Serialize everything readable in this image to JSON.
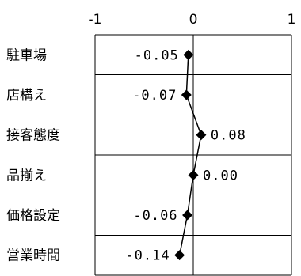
{
  "chart_data": {
    "type": "line",
    "orientation": "horizontal",
    "categories": [
      "駐車場",
      "店構え",
      "接客態度",
      "品揃え",
      "価格設定",
      "営業時間"
    ],
    "values": [
      -0.05,
      -0.07,
      0.08,
      0.0,
      -0.06,
      -0.14
    ],
    "data_labels": [
      "-0.05",
      "-0.07",
      "0.08",
      "0.00",
      "-0.06",
      "-0.14"
    ],
    "xlim": [
      -1,
      1
    ],
    "x_ticks": [
      -1,
      0,
      1
    ],
    "x_tick_labels": [
      "-1",
      "0",
      "1"
    ],
    "x_axis_position": "top",
    "grid": true,
    "legend": "none",
    "title": "",
    "xlabel": "",
    "ylabel": "",
    "marker": "diamond",
    "colors": {
      "line": "#000000",
      "marker": "#000000",
      "grid": "#000000",
      "background": "#ffffff"
    }
  }
}
